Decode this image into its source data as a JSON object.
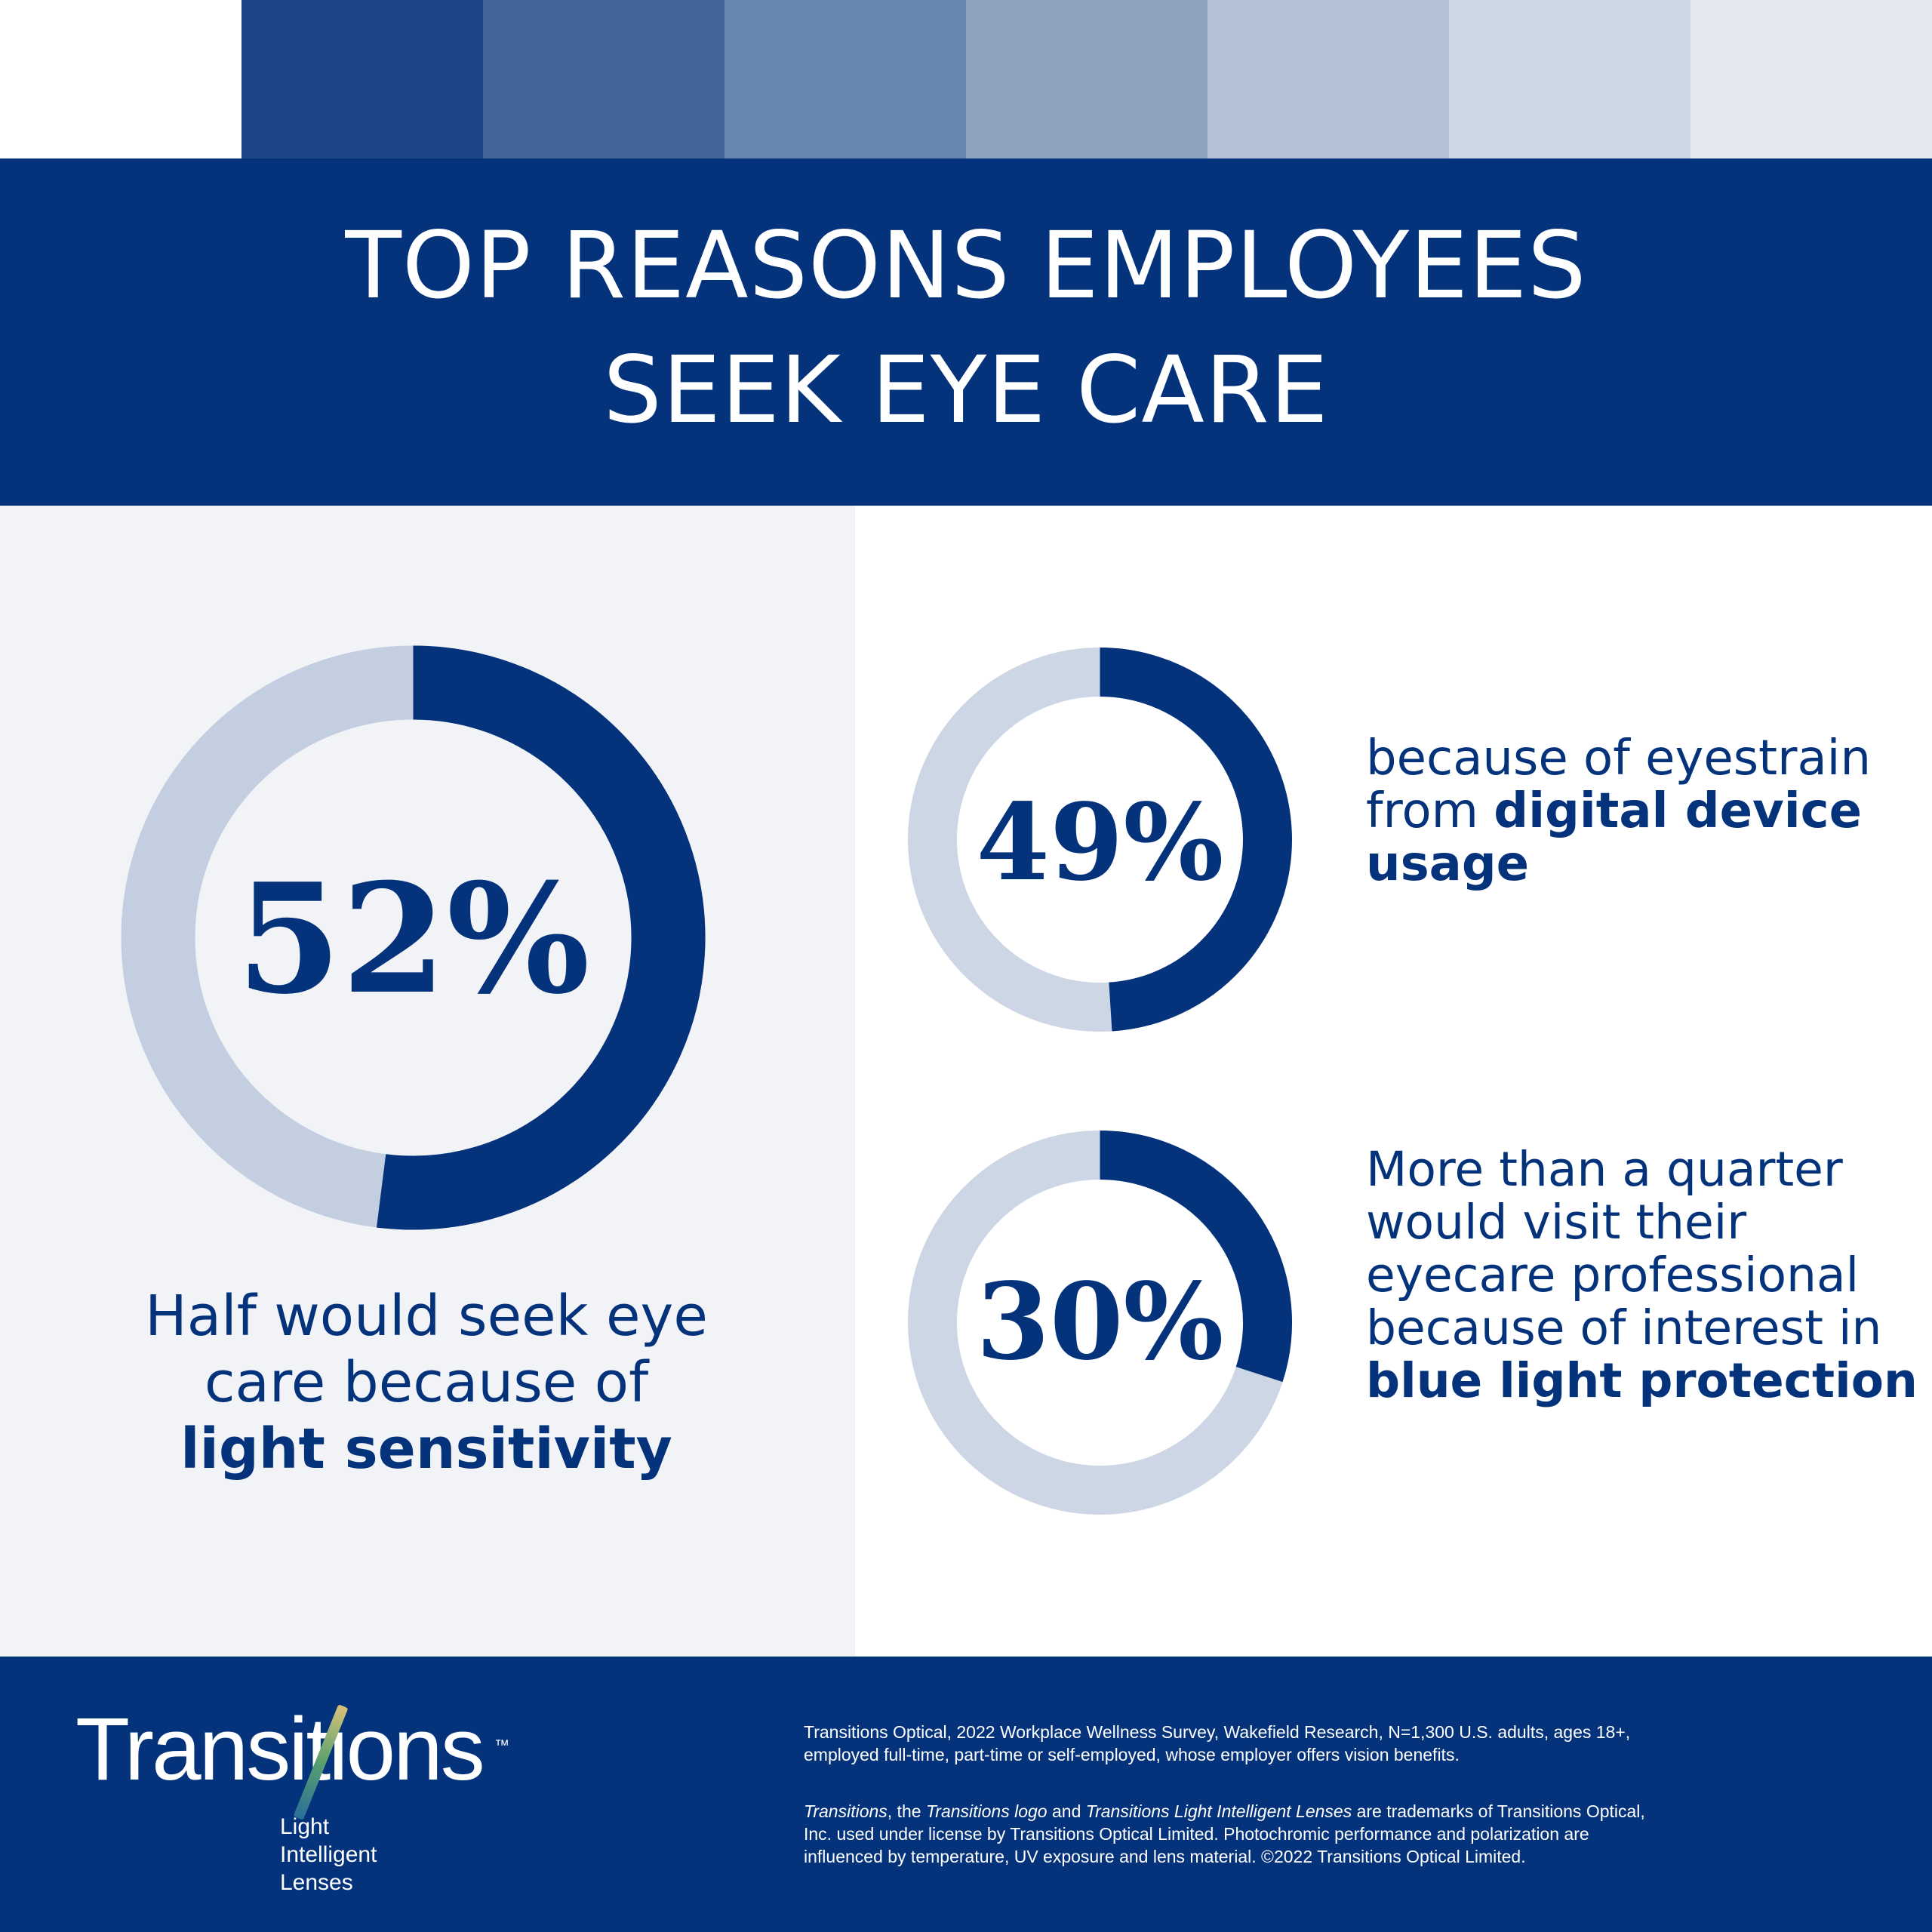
{
  "title": {
    "line1": "TOP REASONS EMPLOYEES",
    "line2": "SEEK EYE CARE"
  },
  "colors": {
    "primary": "#04337c",
    "track": "#c3cee1",
    "track_light": "#ccd6e4",
    "panel": "#f1f3f7",
    "strip": [
      "#1d4688",
      "#42659a",
      "#6685af",
      "#8fa3c1",
      "#b3c2d7",
      "#cdd6e4",
      "#e4e8ef"
    ]
  },
  "chart_data": [
    {
      "type": "pie",
      "variant": "donut",
      "value": 52,
      "label": "52%",
      "caption": {
        "line1": "Half would seek eye",
        "line2": "care because of",
        "bold": "light sensitivity"
      }
    },
    {
      "type": "pie",
      "variant": "donut",
      "value": 49,
      "label": "49%",
      "caption": {
        "line1": "because of eyestrain",
        "line2_prefix": "from ",
        "line2_bold": "digital device",
        "line3_bold": "usage"
      }
    },
    {
      "type": "pie",
      "variant": "donut",
      "value": 30,
      "label": "30%",
      "caption": {
        "line1": "More than a quarter",
        "line2": "would visit their",
        "line3": "eyecare professional",
        "line4": "because of interest in",
        "bold": "blue light protection"
      }
    }
  ],
  "footer": {
    "logo": {
      "word": "Transitions",
      "tm": "™",
      "tagline1": "Light",
      "tagline2": "Intelligent",
      "tagline3": "Lenses"
    },
    "source_line1": "Transitions Optical, 2022 Workplace Wellness Survey, Wakefield Research, N=1,300 U.S. adults, ages 18+,",
    "source_line2": "employed full-time, part-time or self-employed, whose employer offers vision benefits.",
    "tm_italic1": "Transitions",
    "tm_text1": ", the ",
    "tm_italic2": "Transitions logo",
    "tm_text2": " and ",
    "tm_italic3": "Transitions Light Intelligent Lenses",
    "tm_text3": " are trademarks of Transitions Optical,",
    "legal_line2": "Inc. used under license by Transitions Optical Limited. Photochromic performance and polarization are",
    "legal_line3": "influenced by temperature, UV exposure and lens material. ©2022 Transitions Optical Limited."
  }
}
